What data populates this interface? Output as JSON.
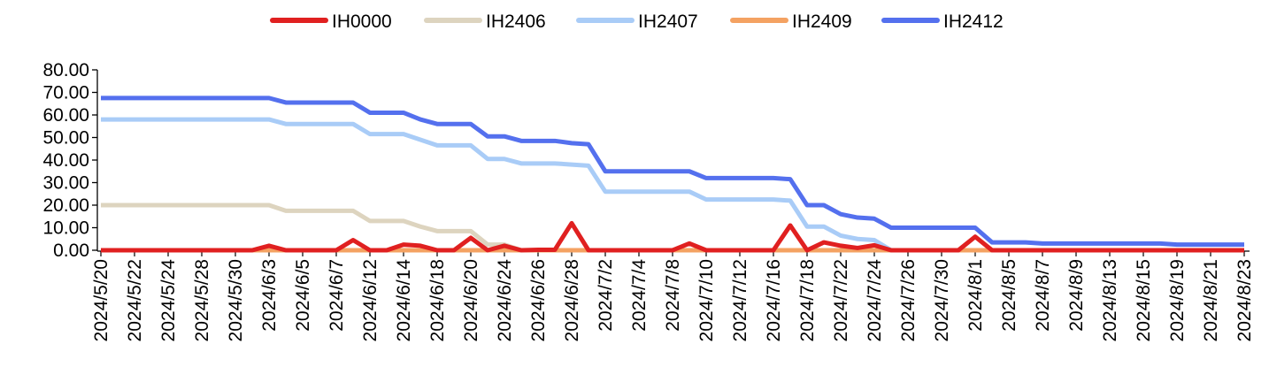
{
  "chart_data": {
    "type": "line",
    "title": "",
    "xlabel": "",
    "ylabel": "",
    "ylim": [
      0,
      80
    ],
    "yticks": [
      "0.00",
      "10.00",
      "20.00",
      "30.00",
      "40.00",
      "50.00",
      "60.00",
      "70.00",
      "80.00"
    ],
    "grid": false,
    "legend_position": "top",
    "x_tick_labels": [
      "2024/5/20",
      "2024/5/22",
      "2024/5/24",
      "2024/5/28",
      "2024/5/30",
      "2024/6/3",
      "2024/6/5",
      "2024/6/7",
      "2024/6/12",
      "2024/6/14",
      "2024/6/18",
      "2024/6/20",
      "2024/6/24",
      "2024/6/26",
      "2024/6/28",
      "2024/7/2",
      "2024/7/4",
      "2024/7/8",
      "2024/7/10",
      "2024/7/12",
      "2024/7/16",
      "2024/7/18",
      "2024/7/22",
      "2024/7/24",
      "2024/7/26",
      "2024/7/30",
      "2024/8/1",
      "2024/8/5",
      "2024/8/7",
      "2024/8/9",
      "2024/8/13",
      "2024/8/15",
      "2024/8/19",
      "2024/8/21",
      "2024/8/23"
    ],
    "x_count": 69,
    "series": [
      {
        "name": "IH0000",
        "color": "#e02020",
        "values": [
          0,
          0,
          0,
          0,
          0,
          0,
          0,
          0,
          0,
          0,
          2,
          0,
          0,
          0,
          0,
          4.5,
          0,
          0,
          2.5,
          2,
          0,
          0,
          5.5,
          0,
          2,
          0,
          0.2,
          0.2,
          12,
          0,
          0,
          0,
          0,
          0,
          0,
          3,
          0,
          0,
          0,
          0,
          0,
          11,
          0,
          3.5,
          2,
          1,
          2.2,
          0,
          0,
          0,
          0,
          0,
          6,
          0,
          0,
          0,
          0,
          0,
          0,
          0,
          0,
          0,
          0,
          0,
          0,
          0,
          0,
          0,
          0
        ]
      },
      {
        "name": "IH2406",
        "color": "#ddd4bf",
        "values": [
          20,
          20,
          20,
          20,
          20,
          20,
          20,
          20,
          20,
          20,
          20,
          17.5,
          17.5,
          17.5,
          17.5,
          17.5,
          13,
          13,
          13,
          10.5,
          8.5,
          8.5,
          8.5,
          2.5,
          2.5,
          0,
          0,
          0,
          0,
          0,
          0,
          0,
          0,
          0,
          0,
          0,
          0,
          0,
          0,
          0,
          0,
          0,
          0,
          0,
          0,
          0,
          0,
          0,
          0,
          0,
          0,
          0,
          0,
          0,
          0,
          0,
          0,
          0,
          0,
          0,
          0,
          0,
          0,
          0,
          0,
          0,
          0,
          0,
          0
        ]
      },
      {
        "name": "IH2407",
        "color": "#a9ccf7",
        "values": [
          58,
          58,
          58,
          58,
          58,
          58,
          58,
          58,
          58,
          58,
          58,
          56,
          56,
          56,
          56,
          56,
          51.5,
          51.5,
          51.5,
          49,
          46.5,
          46.5,
          46.5,
          40.5,
          40.5,
          38.5,
          38.5,
          38.5,
          38,
          37.5,
          26,
          26,
          26,
          26,
          26,
          26,
          22.5,
          22.5,
          22.5,
          22.5,
          22.5,
          22,
          10.5,
          10.5,
          6.5,
          5,
          4.5,
          0,
          0,
          0,
          0,
          0,
          0,
          0,
          0,
          0,
          0,
          0,
          0,
          0,
          0,
          0,
          0,
          0,
          0,
          0,
          0,
          0,
          0
        ]
      },
      {
        "name": "IH2409",
        "color": "#f4a262",
        "values": [
          0,
          0,
          0,
          0,
          0,
          0,
          0,
          0,
          0,
          0,
          0,
          0,
          0,
          0,
          0,
          0,
          0,
          0,
          0,
          0,
          0,
          0,
          0,
          0,
          0,
          0,
          0,
          0,
          0,
          0,
          0,
          0,
          0,
          0,
          0,
          0,
          0,
          0,
          0,
          0,
          0,
          0,
          0,
          0,
          0,
          0,
          0,
          0,
          0,
          0,
          0,
          0,
          0,
          0,
          0,
          0,
          0,
          0,
          0,
          0,
          0,
          0,
          0,
          0,
          0,
          0,
          0,
          0,
          0
        ]
      },
      {
        "name": "IH2412",
        "color": "#5470ee",
        "values": [
          67.5,
          67.5,
          67.5,
          67.5,
          67.5,
          67.5,
          67.5,
          67.5,
          67.5,
          67.5,
          67.5,
          65.5,
          65.5,
          65.5,
          65.5,
          65.5,
          61,
          61,
          61,
          58,
          56,
          56,
          56,
          50.5,
          50.5,
          48.5,
          48.5,
          48.5,
          47.5,
          47,
          35,
          35,
          35,
          35,
          35,
          35,
          32,
          32,
          32,
          32,
          32,
          31.5,
          20,
          20,
          16,
          14.5,
          14,
          10,
          10,
          10,
          10,
          10,
          10,
          3.5,
          3.5,
          3.5,
          3,
          3,
          3,
          3,
          3,
          3,
          3,
          3,
          2.5,
          2.5,
          2.5,
          2.5,
          2.5
        ]
      }
    ]
  }
}
